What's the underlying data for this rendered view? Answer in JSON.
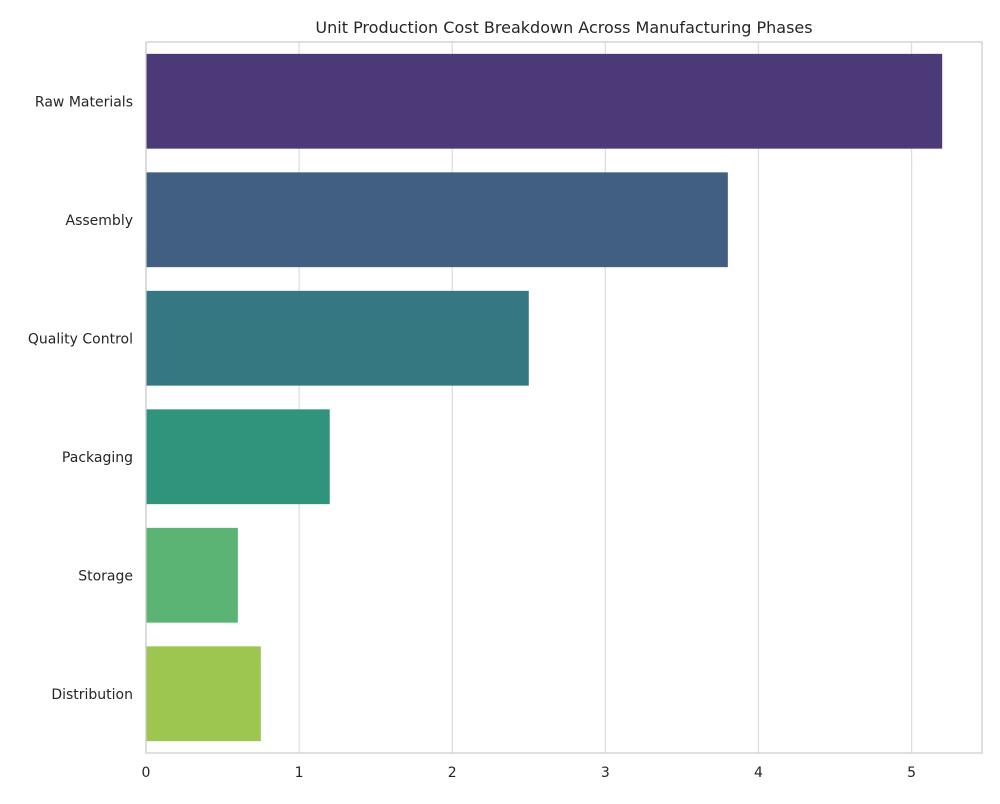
{
  "chart_data": {
    "type": "bar",
    "orientation": "horizontal",
    "title": "Unit Production Cost Breakdown Across Manufacturing Phases",
    "xlabel": "",
    "ylabel": "",
    "categories": [
      "Raw Materials",
      "Assembly",
      "Quality Control",
      "Packaging",
      "Storage",
      "Distribution"
    ],
    "values": [
      5.2,
      3.8,
      2.5,
      1.2,
      0.6,
      0.75
    ],
    "colors": [
      "#4b3978",
      "#415e83",
      "#357882",
      "#30947d",
      "#5bb374",
      "#9cc64f"
    ],
    "xlim": [
      0,
      5.46
    ],
    "xticks": [
      0,
      1,
      2,
      3,
      4,
      5
    ],
    "grid": "vertical",
    "legend": "none"
  }
}
